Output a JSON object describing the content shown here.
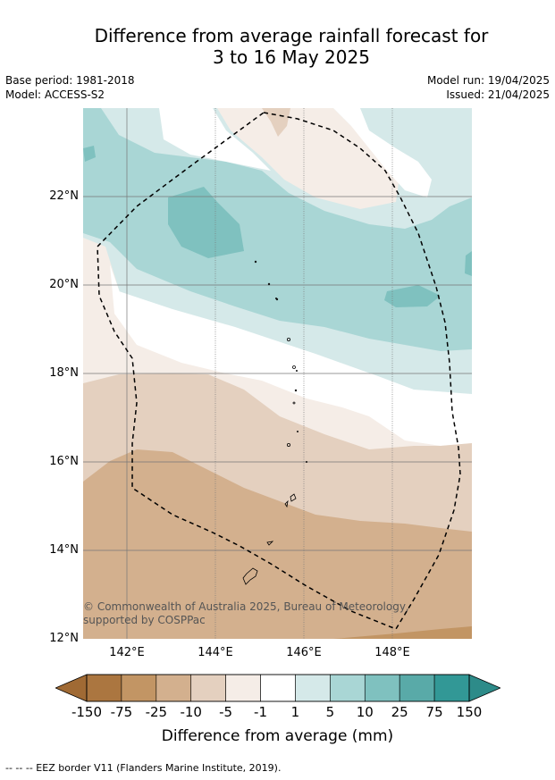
{
  "title": {
    "line1": "Difference from average rainfall forecast for",
    "line2": "3 to 16 May 2025"
  },
  "meta": {
    "base_period": "Base period: 1981-2018",
    "model": "Model: ACCESS-S2",
    "model_run": "Model run: 19/04/2025",
    "issued": "Issued: 21/04/2025"
  },
  "map": {
    "x_ticks": [
      "142°E",
      "144°E",
      "146°E",
      "148°E"
    ],
    "y_ticks": [
      "22°N",
      "20°N",
      "18°N",
      "16°N",
      "14°N",
      "12°N"
    ],
    "attribution": "© Commonwealth of Australia 2025, Bureau of Meteorology, supported by COSPPac",
    "colors": {
      "c_neg150": "#a87441",
      "c_neg75": "#c29564",
      "c_neg25": "#d3b08e",
      "c_neg10": "#e4d0bf",
      "c_neg5": "#f5ede7",
      "c_neg1": "#ffffff",
      "c_1": "#d5e9e9",
      "c_5": "#a9d6d5",
      "c_10": "#7fc1bf",
      "c_25": "#59aaa8",
      "c_75": "#329896",
      "c_150": "#2d8b89"
    }
  },
  "colorbar": {
    "labels": [
      "-150",
      "-75",
      "-25",
      "-10",
      "-5",
      "-1",
      "1",
      "5",
      "10",
      "25",
      "75",
      "150"
    ],
    "colors": [
      "#ab7640",
      "#c29564",
      "#d3b08e",
      "#e4d0bf",
      "#f5ede7",
      "#ffffff",
      "#d5e9e9",
      "#a9d6d5",
      "#7fc1bf",
      "#59aaa8",
      "#329896"
    ],
    "low_extend_color": "#a06a34",
    "high_extend_color": "#2d8b89",
    "title": "Difference from average (mm)"
  },
  "footnote": "-- -- -- EEZ border V11 (Flanders Marine Institute, 2019)."
}
